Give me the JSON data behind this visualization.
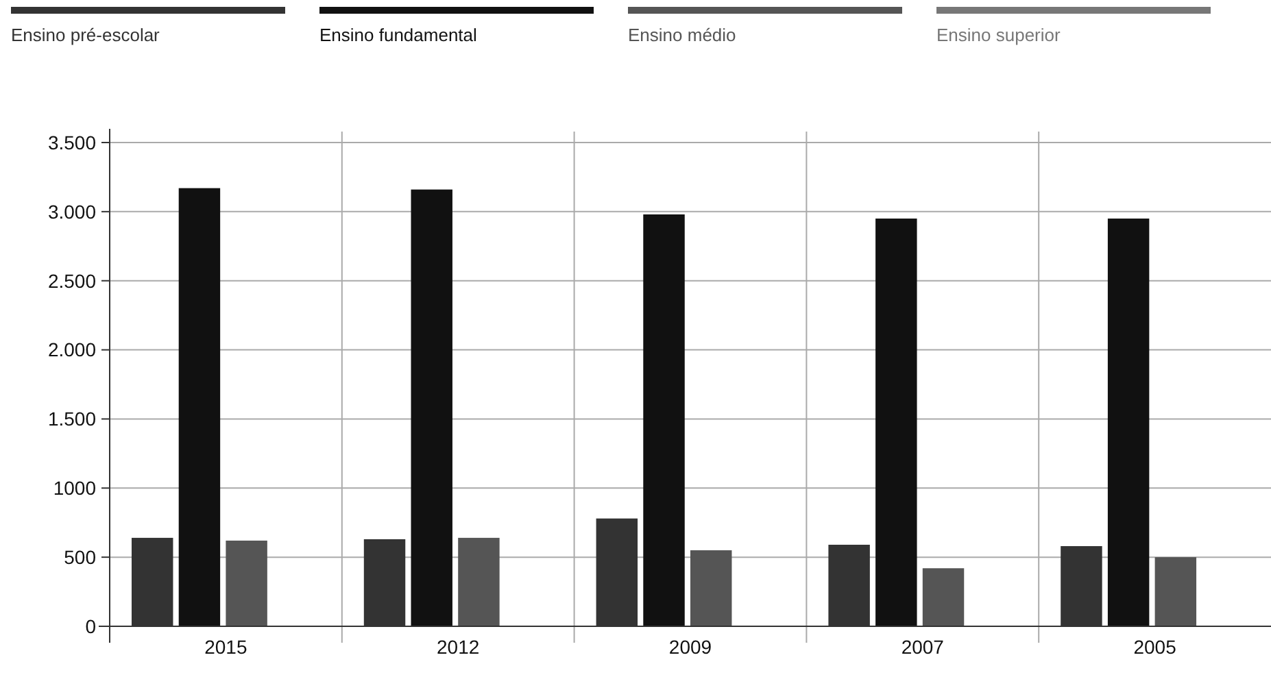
{
  "chart_data": {
    "type": "bar",
    "categories": [
      "2015",
      "2012",
      "2009",
      "2007",
      "2005"
    ],
    "series": [
      {
        "name": "Ensino pré-escolar",
        "color": "#333333",
        "values": [
          640,
          630,
          780,
          590,
          580
        ]
      },
      {
        "name": "Ensino fundamental",
        "color": "#111111",
        "values": [
          3170,
          3160,
          2980,
          2950,
          2950
        ]
      },
      {
        "name": "Ensino médio",
        "color": "#555555",
        "values": [
          620,
          640,
          550,
          420,
          500
        ]
      },
      {
        "name": "Ensino superior",
        "color": "#777777",
        "values": [
          null,
          null,
          null,
          null,
          null
        ]
      }
    ],
    "ylim": [
      0,
      3500
    ],
    "yticks": [
      {
        "value": 0,
        "label": "0"
      },
      {
        "value": 500,
        "label": "500"
      },
      {
        "value": 1000,
        "label": "1000"
      },
      {
        "value": 1500,
        "label": "1.500"
      },
      {
        "value": 2000,
        "label": "2.000"
      },
      {
        "value": 2500,
        "label": "2.500"
      },
      {
        "value": 3000,
        "label": "3.000"
      },
      {
        "value": 3500,
        "label": "3.500"
      }
    ],
    "grid": true,
    "legend": "top"
  }
}
